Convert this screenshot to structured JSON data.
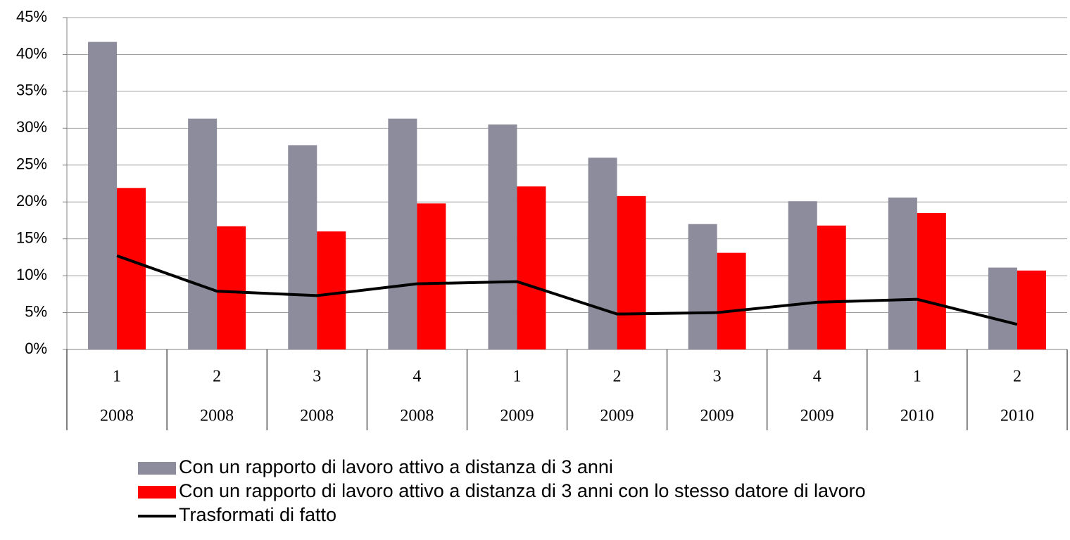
{
  "chart_data": {
    "type": "bar",
    "categories": [
      {
        "quarter": "1",
        "year": "2008"
      },
      {
        "quarter": "2",
        "year": "2008"
      },
      {
        "quarter": "3",
        "year": "2008"
      },
      {
        "quarter": "4",
        "year": "2008"
      },
      {
        "quarter": "1",
        "year": "2009"
      },
      {
        "quarter": "2",
        "year": "2009"
      },
      {
        "quarter": "3",
        "year": "2009"
      },
      {
        "quarter": "4",
        "year": "2009"
      },
      {
        "quarter": "1",
        "year": "2010"
      },
      {
        "quarter": "2",
        "year": "2010"
      }
    ],
    "series": [
      {
        "name": "Con un rapporto di lavoro attivo a distanza di 3 anni",
        "type": "bar",
        "color": "#8c8c9c",
        "values": [
          41.7,
          31.3,
          27.7,
          31.3,
          30.5,
          26.0,
          17.0,
          20.1,
          20.6,
          11.1
        ]
      },
      {
        "name": "Con un rapporto di lavoro attivo a distanza di 3 anni con lo stesso datore di lavoro",
        "type": "bar",
        "color": "#ff0000",
        "values": [
          21.9,
          16.7,
          16.0,
          19.8,
          22.1,
          20.8,
          13.1,
          16.8,
          18.5,
          10.7
        ]
      },
      {
        "name": "Trasformati di fatto",
        "type": "line",
        "color": "#000000",
        "values": [
          12.7,
          7.9,
          7.3,
          8.9,
          9.2,
          4.8,
          5.0,
          6.4,
          6.8,
          3.4
        ]
      }
    ],
    "ylim": [
      0,
      45
    ],
    "yticks": [
      {
        "value": 0,
        "label": "0%"
      },
      {
        "value": 5,
        "label": "5%"
      },
      {
        "value": 10,
        "label": "10%"
      },
      {
        "value": 15,
        "label": "15%"
      },
      {
        "value": 20,
        "label": "20%"
      },
      {
        "value": 25,
        "label": "25%"
      },
      {
        "value": 30,
        "label": "30%"
      },
      {
        "value": 35,
        "label": "35%"
      },
      {
        "value": 40,
        "label": "40%"
      },
      {
        "value": 45,
        "label": "45%"
      }
    ],
    "grid": true
  }
}
